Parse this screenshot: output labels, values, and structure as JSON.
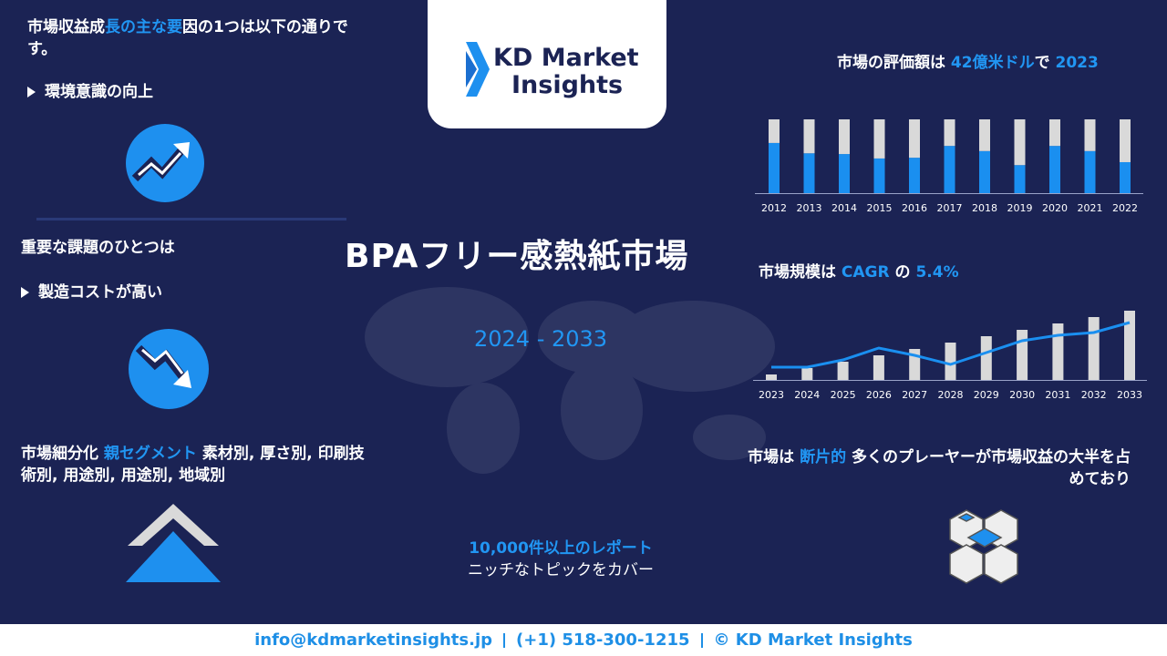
{
  "logo": {
    "line1": "KD Market",
    "line2": "Insights"
  },
  "title": "BPAフリー感熱紙市場",
  "period": "2024 - 2033",
  "driver": {
    "parts": [
      "市場収益成",
      "長の主な要",
      "因の1つは以下の通りです。"
    ],
    "item": "環境意識の向上"
  },
  "challenge": {
    "heading": "重要な課題のひとつは",
    "item": "製造コストが高い"
  },
  "segmentation": {
    "parts": [
      "市場細分化",
      "親セグメント",
      "素材別, 厚さ別, 印刷技術別, 用途別, 用途別, 地域別"
    ]
  },
  "reports": {
    "line1": "10,000件以上のレポート",
    "line2": "ニッチなトピックをカバー"
  },
  "valuation": {
    "parts": [
      "市場の評価額は",
      "42億米ドル",
      "で",
      "2023"
    ]
  },
  "cagr": {
    "parts": [
      "市場規模は",
      "CAGR",
      "の",
      "5.4%"
    ]
  },
  "fragmented": {
    "parts": [
      "市場は",
      "断片的",
      "多くのプレーヤーが市場収益の大半を占めており"
    ]
  },
  "footer": {
    "email": "info@kdmarketinsights.jp",
    "phone": "(+1) 518-300-1215",
    "copyright": "© KD Market Insights"
  },
  "chart_data": [
    {
      "type": "bar",
      "stacked": true,
      "ylim": [
        0,
        100
      ],
      "categories": [
        "2012",
        "2013",
        "2014",
        "2015",
        "2016",
        "2017",
        "2018",
        "2019",
        "2020",
        "2021",
        "2022"
      ],
      "series": [
        {
          "color": "#1a8ff0",
          "values": [
            68,
            54,
            53,
            47,
            48,
            64,
            57,
            38,
            64,
            57,
            42
          ]
        },
        {
          "color": "#d9d9d9",
          "values": [
            32,
            46,
            47,
            53,
            52,
            36,
            43,
            62,
            36,
            43,
            58
          ]
        }
      ]
    },
    {
      "type": "bar",
      "stacked": false,
      "ylim": [
        0,
        80
      ],
      "categories": [
        "2023",
        "2024",
        "2025",
        "2026",
        "2027",
        "2028",
        "2029",
        "2030",
        "2031",
        "2032",
        "2033"
      ],
      "series": [
        {
          "type": "bar",
          "color": "#d9d9d9",
          "values": [
            6,
            13,
            20,
            27,
            34,
            41,
            48,
            55,
            62,
            69,
            76
          ]
        },
        {
          "type": "line",
          "color": "#1a8ff0",
          "values": [
            14,
            14,
            22,
            35,
            27,
            17,
            30,
            43,
            49,
            52,
            63
          ]
        }
      ]
    }
  ]
}
